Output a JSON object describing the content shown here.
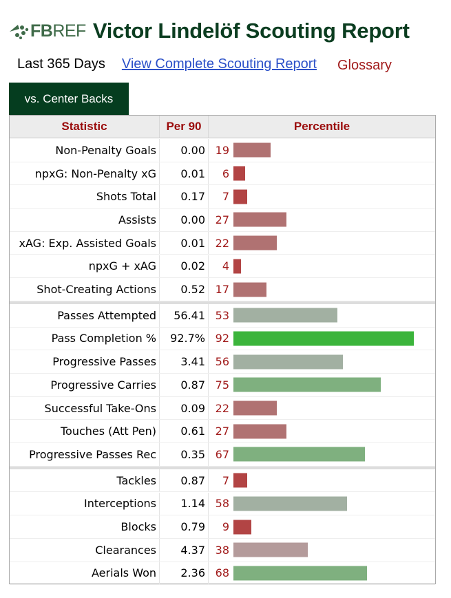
{
  "header": {
    "logo_text_bold": "FB",
    "logo_text": "REF",
    "title": "Victor Lindelöf Scouting Report"
  },
  "subnav": {
    "period": "Last 365 Days",
    "link": "View Complete Scouting Report",
    "glossary": "Glossary"
  },
  "tab": {
    "label": "vs. Center Backs"
  },
  "table": {
    "columns": [
      "Statistic",
      "Per 90",
      "Percentile"
    ],
    "groups": [
      [
        {
          "stat": "Non-Penalty Goals",
          "per90": "0.00",
          "pct": 19
        },
        {
          "stat": "npxG: Non-Penalty xG",
          "per90": "0.01",
          "pct": 6
        },
        {
          "stat": "Shots Total",
          "per90": "0.17",
          "pct": 7
        },
        {
          "stat": "Assists",
          "per90": "0.00",
          "pct": 27
        },
        {
          "stat": "xAG: Exp. Assisted Goals",
          "per90": "0.01",
          "pct": 22
        },
        {
          "stat": "npxG + xAG",
          "per90": "0.02",
          "pct": 4
        },
        {
          "stat": "Shot-Creating Actions",
          "per90": "0.52",
          "pct": 17
        }
      ],
      [
        {
          "stat": "Passes Attempted",
          "per90": "56.41",
          "pct": 53
        },
        {
          "stat": "Pass Completion %",
          "per90": "92.7%",
          "pct": 92
        },
        {
          "stat": "Progressive Passes",
          "per90": "3.41",
          "pct": 56
        },
        {
          "stat": "Progressive Carries",
          "per90": "0.87",
          "pct": 75
        },
        {
          "stat": "Successful Take-Ons",
          "per90": "0.09",
          "pct": 22
        },
        {
          "stat": "Touches (Att Pen)",
          "per90": "0.61",
          "pct": 27
        },
        {
          "stat": "Progressive Passes Rec",
          "per90": "0.35",
          "pct": 67
        }
      ],
      [
        {
          "stat": "Tackles",
          "per90": "0.87",
          "pct": 7
        },
        {
          "stat": "Interceptions",
          "per90": "1.14",
          "pct": 58
        },
        {
          "stat": "Blocks",
          "per90": "0.79",
          "pct": 9
        },
        {
          "stat": "Clearances",
          "per90": "4.37",
          "pct": 38
        },
        {
          "stat": "Aerials Won",
          "per90": "2.36",
          "pct": 68
        }
      ]
    ]
  },
  "colors": {
    "title": "#0b3d20",
    "tab_bg": "#053d1f",
    "header_text": "#9a0a0a",
    "pct_text": "#a11b1b",
    "link": "#2b50c8"
  }
}
